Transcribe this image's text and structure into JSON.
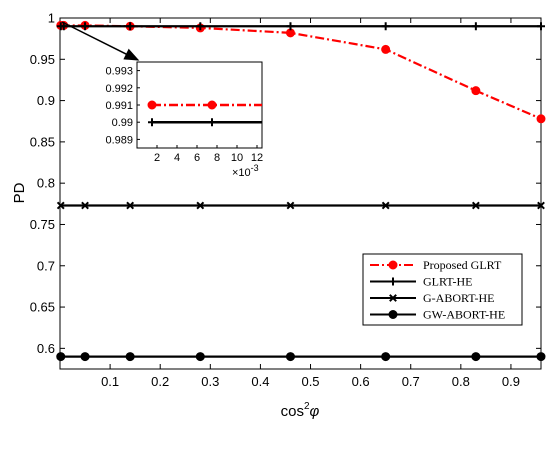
{
  "chart_data": {
    "type": "line",
    "xlabel": "cos",
    "xlabel_sup": "2",
    "xlabel_var": "φ",
    "ylabel": "PD",
    "xlim": [
      0,
      0.96
    ],
    "ylim": [
      0.575,
      1.0
    ],
    "xticks": [
      "0.1",
      "0.2",
      "0.3",
      "0.4",
      "0.5",
      "0.6",
      "0.7",
      "0.8",
      "0.9"
    ],
    "yticks": [
      "0.6",
      "0.65",
      "0.7",
      "0.75",
      "0.8",
      "0.85",
      "0.9",
      "0.95",
      "1"
    ],
    "grid": false,
    "legend_position": "center-right",
    "series": [
      {
        "name": "Proposed GLRT",
        "color": "#ff0000",
        "line_style": "dash-dot",
        "marker": "circle-filled",
        "x": [
          0.0015,
          0.0075,
          0.05,
          0.14,
          0.28,
          0.46,
          0.65,
          0.83,
          0.96
        ],
        "y": [
          0.991,
          0.991,
          0.991,
          0.99,
          0.988,
          0.982,
          0.962,
          0.912,
          0.878
        ]
      },
      {
        "name": "GLRT-HE",
        "color": "#000000",
        "line_style": "solid",
        "marker": "plus",
        "x": [
          0.0015,
          0.0075,
          0.05,
          0.14,
          0.28,
          0.46,
          0.65,
          0.83,
          0.96
        ],
        "y": [
          0.99,
          0.99,
          0.99,
          0.99,
          0.99,
          0.99,
          0.99,
          0.99,
          0.99
        ]
      },
      {
        "name": "G-ABORT-HE",
        "color": "#000000",
        "line_style": "solid",
        "marker": "x",
        "x": [
          0.0015,
          0.05,
          0.14,
          0.28,
          0.46,
          0.65,
          0.83,
          0.96
        ],
        "y": [
          0.773,
          0.773,
          0.773,
          0.773,
          0.773,
          0.773,
          0.773,
          0.773
        ]
      },
      {
        "name": "GW-ABORT-HE",
        "color": "#000000",
        "line_style": "solid",
        "marker": "circle-filled",
        "x": [
          0.0015,
          0.05,
          0.14,
          0.28,
          0.46,
          0.65,
          0.83,
          0.96
        ],
        "y": [
          0.59,
          0.59,
          0.59,
          0.59,
          0.59,
          0.59,
          0.59,
          0.59
        ]
      }
    ],
    "inset": {
      "xlim": [
        0,
        0.0125
      ],
      "ylim": [
        0.9885,
        0.9935
      ],
      "xticks": [
        "2",
        "4",
        "6",
        "8",
        "10",
        "12"
      ],
      "yticks": [
        "0.989",
        "0.99",
        "0.991",
        "0.992",
        "0.993"
      ],
      "x_multiplier": "×10",
      "x_multiplier_exp": "-3",
      "series": [
        {
          "color": "#ff0000",
          "line_style": "dash-dot",
          "marker": "circle-filled",
          "x": [
            0.0015,
            0.0075,
            0.0125
          ],
          "y": [
            0.991,
            0.991,
            0.991
          ]
        },
        {
          "color": "#000000",
          "line_style": "solid",
          "marker": "plus",
          "x": [
            0.0015,
            0.0075,
            0.0125
          ],
          "y": [
            0.99,
            0.99,
            0.99
          ]
        }
      ]
    }
  }
}
